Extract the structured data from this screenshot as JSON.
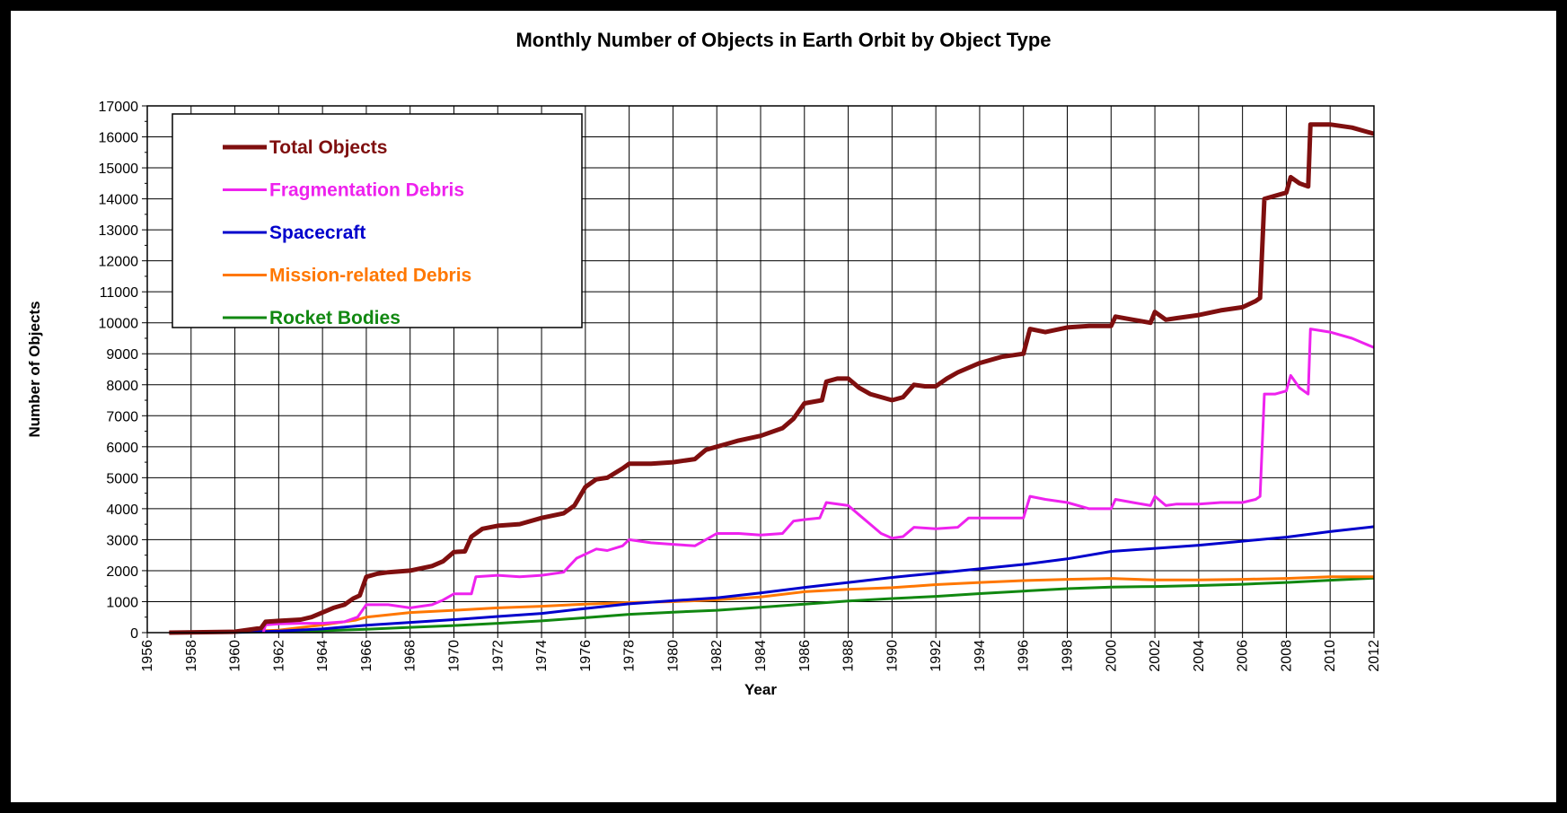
{
  "chart_data": {
    "type": "line",
    "title": "Monthly Number of Objects in Earth Orbit by Object Type",
    "xlabel": "Year",
    "ylabel": "Number of Objects",
    "xlim": [
      1956,
      2012
    ],
    "ylim": [
      0,
      17000
    ],
    "x_ticks": [
      "1956",
      "1958",
      "1960",
      "1962",
      "1964",
      "1966",
      "1968",
      "1970",
      "1972",
      "1974",
      "1976",
      "1978",
      "1980",
      "1982",
      "1984",
      "1986",
      "1988",
      "1990",
      "1992",
      "1994",
      "1996",
      "1998",
      "2000",
      "2002",
      "2004",
      "2006",
      "2008",
      "2010",
      "2012"
    ],
    "y_ticks": [
      "0",
      "1000",
      "2000",
      "3000",
      "4000",
      "5000",
      "6000",
      "7000",
      "8000",
      "9000",
      "10000",
      "11000",
      "12000",
      "13000",
      "14000",
      "15000",
      "16000",
      "17000"
    ],
    "grid": true,
    "legend_position": "top-left",
    "series": [
      {
        "name": "Total Objects",
        "color": "#7f0f0f",
        "points": [
          [
            1957,
            0
          ],
          [
            1960,
            30
          ],
          [
            1961.2,
            150
          ],
          [
            1961.4,
            350
          ],
          [
            1962,
            380
          ],
          [
            1963,
            420
          ],
          [
            1963.5,
            500
          ],
          [
            1964,
            650
          ],
          [
            1964.5,
            800
          ],
          [
            1965,
            900
          ],
          [
            1965.4,
            1100
          ],
          [
            1965.7,
            1200
          ],
          [
            1966,
            1800
          ],
          [
            1966.5,
            1900
          ],
          [
            1967,
            1950
          ],
          [
            1968,
            2000
          ],
          [
            1969,
            2150
          ],
          [
            1969.5,
            2300
          ],
          [
            1970,
            2600
          ],
          [
            1970.5,
            2620
          ],
          [
            1970.8,
            3100
          ],
          [
            1971.3,
            3350
          ],
          [
            1972,
            3450
          ],
          [
            1973,
            3500
          ],
          [
            1974,
            3700
          ],
          [
            1975,
            3850
          ],
          [
            1975.5,
            4100
          ],
          [
            1976,
            4700
          ],
          [
            1976.5,
            4950
          ],
          [
            1977,
            5000
          ],
          [
            1977.7,
            5300
          ],
          [
            1978,
            5450
          ],
          [
            1979,
            5450
          ],
          [
            1980,
            5500
          ],
          [
            1981,
            5600
          ],
          [
            1981.5,
            5900
          ],
          [
            1982,
            6000
          ],
          [
            1982.5,
            6100
          ],
          [
            1983,
            6200
          ],
          [
            1984,
            6350
          ],
          [
            1985,
            6600
          ],
          [
            1985.5,
            6900
          ],
          [
            1986,
            7400
          ],
          [
            1986.8,
            7500
          ],
          [
            1987,
            8100
          ],
          [
            1987.5,
            8200
          ],
          [
            1988,
            8200
          ],
          [
            1988.5,
            7900
          ],
          [
            1989,
            7700
          ],
          [
            1990,
            7500
          ],
          [
            1990.5,
            7600
          ],
          [
            1991,
            8000
          ],
          [
            1991.5,
            7950
          ],
          [
            1992,
            7950
          ],
          [
            1992.5,
            8200
          ],
          [
            1993,
            8400
          ],
          [
            1994,
            8700
          ],
          [
            1995,
            8900
          ],
          [
            1996,
            9000
          ],
          [
            1996.3,
            9800
          ],
          [
            1997,
            9700
          ],
          [
            1998,
            9850
          ],
          [
            1999,
            9900
          ],
          [
            2000,
            9900
          ],
          [
            2000.2,
            10200
          ],
          [
            2001,
            10100
          ],
          [
            2001.8,
            10000
          ],
          [
            2002,
            10350
          ],
          [
            2002.5,
            10100
          ],
          [
            2003,
            10150
          ],
          [
            2004,
            10250
          ],
          [
            2005,
            10400
          ],
          [
            2006,
            10500
          ],
          [
            2006.6,
            10700
          ],
          [
            2006.8,
            10800
          ],
          [
            2007,
            14000
          ],
          [
            2007.5,
            14100
          ],
          [
            2008,
            14200
          ],
          [
            2008.2,
            14700
          ],
          [
            2008.6,
            14500
          ],
          [
            2009,
            14400
          ],
          [
            2009.1,
            16400
          ],
          [
            2010,
            16400
          ],
          [
            2011,
            16300
          ],
          [
            2012,
            16100
          ]
        ]
      },
      {
        "name": "Fragmentation Debris",
        "color": "#ee22ee",
        "points": [
          [
            1961.3,
            0
          ],
          [
            1961.4,
            250
          ],
          [
            1962,
            280
          ],
          [
            1963,
            300
          ],
          [
            1964,
            300
          ],
          [
            1965,
            350
          ],
          [
            1965.6,
            500
          ],
          [
            1966,
            900
          ],
          [
            1967,
            900
          ],
          [
            1968,
            800
          ],
          [
            1969,
            900
          ],
          [
            1969.5,
            1050
          ],
          [
            1970,
            1250
          ],
          [
            1970.8,
            1250
          ],
          [
            1971,
            1800
          ],
          [
            1972,
            1850
          ],
          [
            1973,
            1800
          ],
          [
            1974,
            1850
          ],
          [
            1975,
            1950
          ],
          [
            1975.6,
            2400
          ],
          [
            1976.5,
            2700
          ],
          [
            1977,
            2650
          ],
          [
            1977.7,
            2800
          ],
          [
            1978,
            3000
          ],
          [
            1979,
            2900
          ],
          [
            1980,
            2850
          ],
          [
            1981,
            2800
          ],
          [
            1981.5,
            3000
          ],
          [
            1982,
            3200
          ],
          [
            1983,
            3200
          ],
          [
            1984,
            3150
          ],
          [
            1985,
            3200
          ],
          [
            1985.5,
            3600
          ],
          [
            1986,
            3650
          ],
          [
            1986.7,
            3700
          ],
          [
            1987,
            4200
          ],
          [
            1988,
            4100
          ],
          [
            1988.5,
            3800
          ],
          [
            1989,
            3500
          ],
          [
            1989.5,
            3200
          ],
          [
            1990,
            3050
          ],
          [
            1990.5,
            3100
          ],
          [
            1991,
            3400
          ],
          [
            1992,
            3350
          ],
          [
            1993,
            3400
          ],
          [
            1993.5,
            3700
          ],
          [
            1994,
            3700
          ],
          [
            1995,
            3700
          ],
          [
            1996,
            3700
          ],
          [
            1996.3,
            4400
          ],
          [
            1997,
            4300
          ],
          [
            1998,
            4200
          ],
          [
            1999,
            4000
          ],
          [
            2000,
            4000
          ],
          [
            2000.2,
            4300
          ],
          [
            2001,
            4200
          ],
          [
            2001.8,
            4100
          ],
          [
            2002,
            4400
          ],
          [
            2002.5,
            4100
          ],
          [
            2003,
            4150
          ],
          [
            2004,
            4150
          ],
          [
            2005,
            4200
          ],
          [
            2006,
            4200
          ],
          [
            2006.6,
            4300
          ],
          [
            2006.8,
            4400
          ],
          [
            2007,
            7700
          ],
          [
            2007.5,
            7700
          ],
          [
            2008,
            7800
          ],
          [
            2008.2,
            8300
          ],
          [
            2008.6,
            7900
          ],
          [
            2009,
            7700
          ],
          [
            2009.1,
            9800
          ],
          [
            2010,
            9700
          ],
          [
            2011,
            9500
          ],
          [
            2012,
            9200
          ]
        ]
      },
      {
        "name": "Spacecraft",
        "color": "#0000cc",
        "points": [
          [
            1957,
            0
          ],
          [
            1960,
            10
          ],
          [
            1962,
            50
          ],
          [
            1964,
            120
          ],
          [
            1966,
            240
          ],
          [
            1968,
            330
          ],
          [
            1970,
            420
          ],
          [
            1972,
            520
          ],
          [
            1974,
            620
          ],
          [
            1976,
            780
          ],
          [
            1978,
            930
          ],
          [
            1980,
            1030
          ],
          [
            1982,
            1120
          ],
          [
            1984,
            1280
          ],
          [
            1986,
            1460
          ],
          [
            1988,
            1620
          ],
          [
            1990,
            1780
          ],
          [
            1992,
            1920
          ],
          [
            1994,
            2060
          ],
          [
            1996,
            2200
          ],
          [
            1998,
            2380
          ],
          [
            2000,
            2620
          ],
          [
            2002,
            2720
          ],
          [
            2004,
            2820
          ],
          [
            2006,
            2950
          ],
          [
            2008,
            3080
          ],
          [
            2010,
            3260
          ],
          [
            2012,
            3420
          ]
        ]
      },
      {
        "name": "Mission-related Debris",
        "color": "#ff7700",
        "points": [
          [
            1957,
            0
          ],
          [
            1960,
            20
          ],
          [
            1962,
            80
          ],
          [
            1964,
            250
          ],
          [
            1965.5,
            400
          ],
          [
            1966,
            500
          ],
          [
            1968,
            650
          ],
          [
            1970,
            720
          ],
          [
            1972,
            800
          ],
          [
            1974,
            850
          ],
          [
            1976,
            920
          ],
          [
            1978,
            970
          ],
          [
            1980,
            1000
          ],
          [
            1982,
            1060
          ],
          [
            1984,
            1150
          ],
          [
            1986,
            1320
          ],
          [
            1988,
            1400
          ],
          [
            1990,
            1450
          ],
          [
            1992,
            1550
          ],
          [
            1994,
            1620
          ],
          [
            1996,
            1680
          ],
          [
            1998,
            1720
          ],
          [
            2000,
            1750
          ],
          [
            2002,
            1700
          ],
          [
            2004,
            1700
          ],
          [
            2006,
            1720
          ],
          [
            2008,
            1750
          ],
          [
            2010,
            1800
          ],
          [
            2012,
            1800
          ]
        ]
      },
      {
        "name": "Rocket Bodies",
        "color": "#118811",
        "points": [
          [
            1957,
            0
          ],
          [
            1960,
            10
          ],
          [
            1962,
            30
          ],
          [
            1964,
            60
          ],
          [
            1966,
            110
          ],
          [
            1968,
            170
          ],
          [
            1970,
            230
          ],
          [
            1972,
            300
          ],
          [
            1974,
            380
          ],
          [
            1976,
            480
          ],
          [
            1978,
            590
          ],
          [
            1980,
            660
          ],
          [
            1982,
            720
          ],
          [
            1984,
            820
          ],
          [
            1986,
            920
          ],
          [
            1988,
            1020
          ],
          [
            1990,
            1100
          ],
          [
            1992,
            1170
          ],
          [
            1994,
            1260
          ],
          [
            1996,
            1340
          ],
          [
            1998,
            1420
          ],
          [
            2000,
            1470
          ],
          [
            2002,
            1490
          ],
          [
            2004,
            1520
          ],
          [
            2006,
            1560
          ],
          [
            2008,
            1620
          ],
          [
            2010,
            1690
          ],
          [
            2012,
            1760
          ]
        ]
      }
    ]
  }
}
